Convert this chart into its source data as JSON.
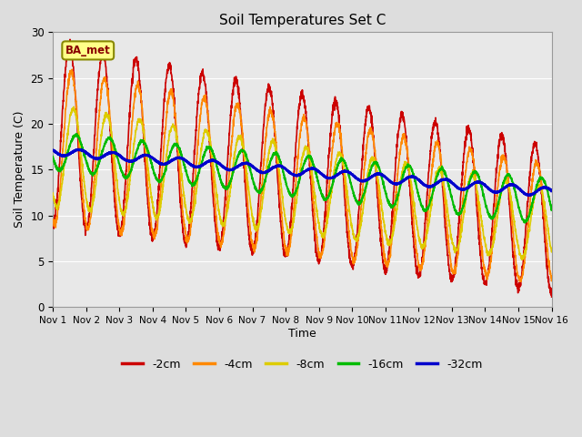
{
  "title": "Soil Temperatures Set C",
  "xlabel": "Time",
  "ylabel": "Soil Temperature (C)",
  "ylim": [
    0,
    30
  ],
  "xlim": [
    0,
    15
  ],
  "figure_bg": "#dddddd",
  "plot_bg": "#e8e8e8",
  "annotation_text": "BA_met",
  "annotation_fg": "#880000",
  "annotation_bg": "#ffff88",
  "annotation_border": "#888800",
  "legend_labels": [
    "-2cm",
    "-4cm",
    "-8cm",
    "-16cm",
    "-32cm"
  ],
  "legend_colors": [
    "#cc0000",
    "#ff8800",
    "#ddcc00",
    "#00bb00",
    "#0000cc"
  ],
  "line_widths": [
    1.2,
    1.2,
    1.2,
    1.5,
    2.0
  ],
  "xtick_labels": [
    "Nov 1",
    "Nov 2",
    "Nov 3",
    "Nov 4",
    "Nov 5",
    "Nov 6",
    "Nov 7",
    "Nov 8",
    "Nov 9",
    "Nov 10",
    "Nov 11",
    "Nov 12",
    "Nov 13",
    "Nov 14",
    "Nov 15",
    "Nov 16"
  ],
  "xtick_positions": [
    0,
    1,
    2,
    3,
    4,
    5,
    6,
    7,
    8,
    9,
    10,
    11,
    12,
    13,
    14,
    15
  ],
  "ytick_positions": [
    0,
    5,
    10,
    15,
    20,
    25,
    30
  ],
  "grid_color": "#ffffff",
  "n_points": 3000
}
